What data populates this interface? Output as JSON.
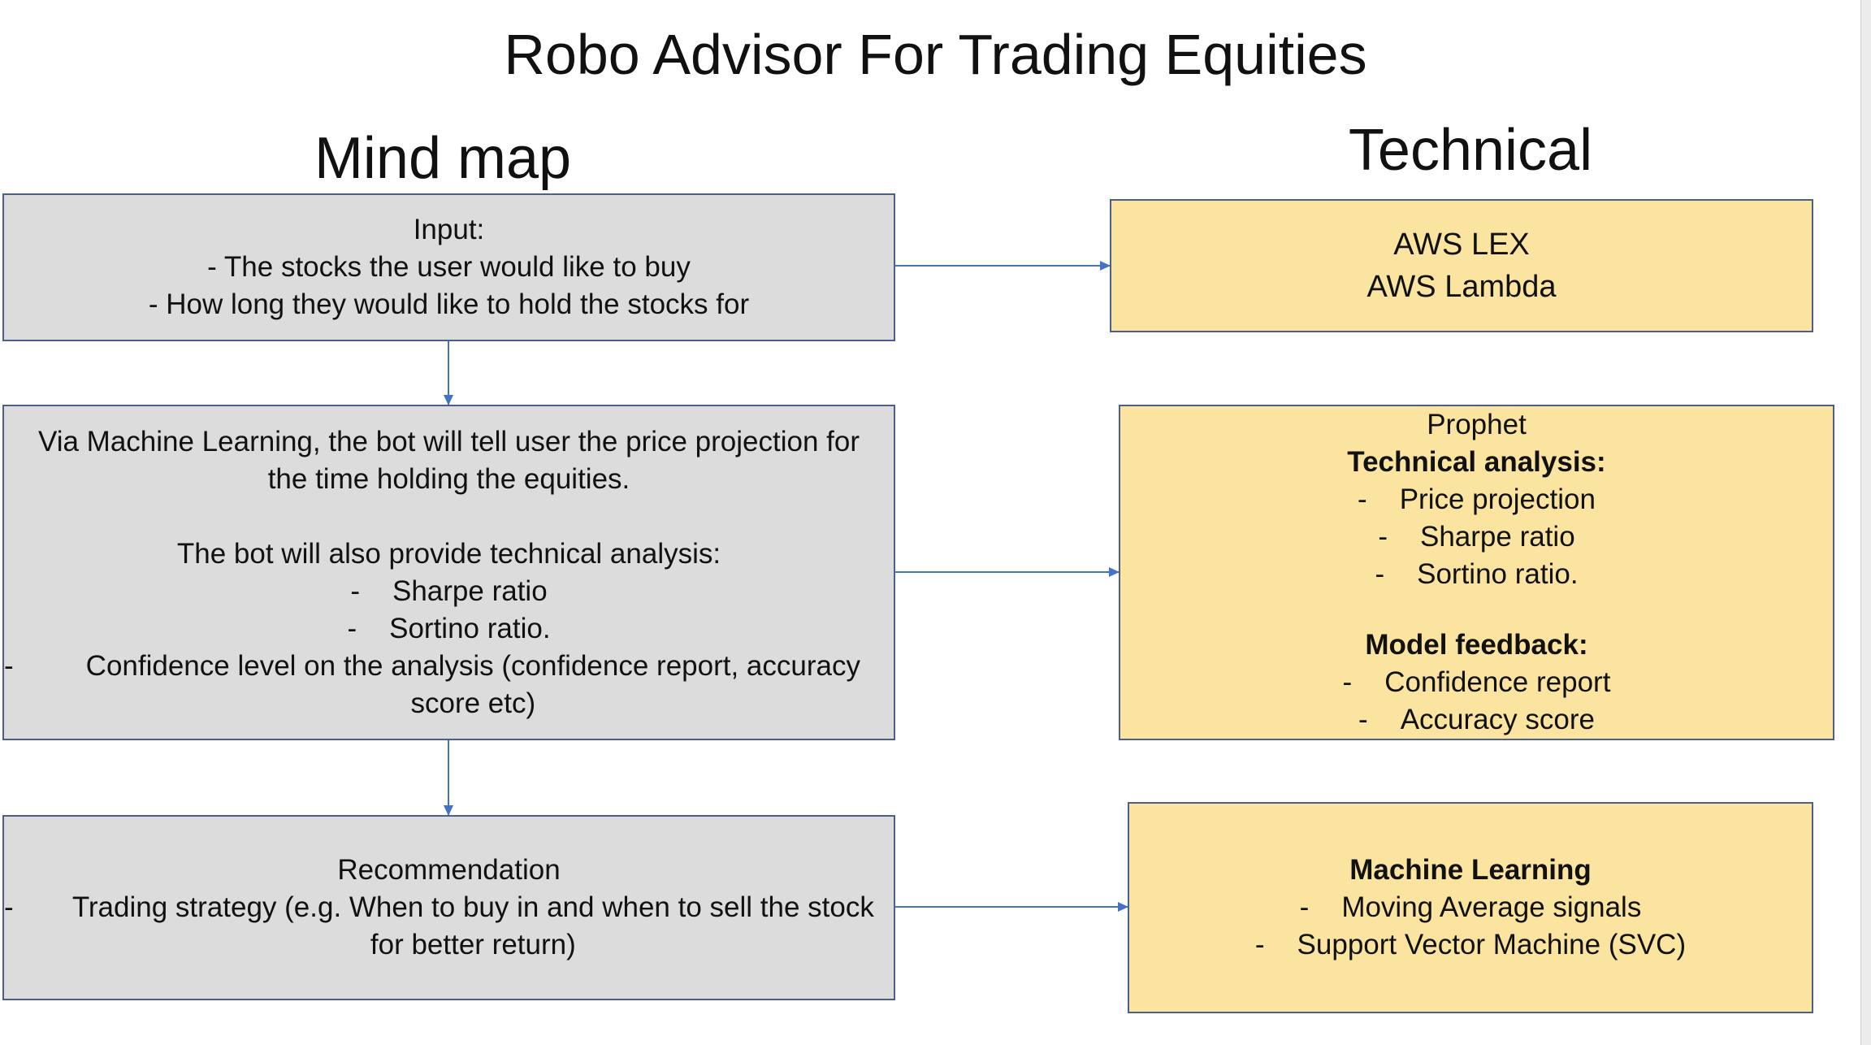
{
  "title": "Robo Advisor For Trading Equities",
  "headings": {
    "left": "Mind map",
    "right": "Technical"
  },
  "input_box": {
    "title": "Input:",
    "lines": [
      "- The stocks the user would like to buy",
      "- How long they would like to hold the stocks for"
    ]
  },
  "ml_box": {
    "intro_1": "Via Machine Learning, the bot will tell user the price projection for",
    "intro_2": "the time holding the equities.",
    "analysis_title": "The bot will also provide technical analysis:",
    "bullets": [
      "Sharpe ratio",
      "Sortino ratio."
    ],
    "confidence": "Confidence level on the analysis (confidence report, accuracy score etc)"
  },
  "recommendation_box": {
    "title": "Recommendation",
    "item": "Trading strategy (e.g. When to buy in and when to sell the stock for better return)"
  },
  "aws_box": {
    "lines": [
      "AWS LEX",
      "AWS Lambda"
    ]
  },
  "prophet_box": {
    "title": "Prophet",
    "analysis_heading": "Technical analysis:",
    "analysis_items": [
      "Price projection",
      "Sharpe ratio",
      "Sortino ratio."
    ],
    "feedback_heading": "Model feedback:",
    "feedback_items": [
      "Confidence report",
      "Accuracy score"
    ]
  },
  "ml_tech_box": {
    "heading": "Machine Learning",
    "items": [
      "Moving Average signals",
      "Support Vector Machine (SVC)"
    ]
  },
  "dash": "-",
  "colors": {
    "grey_box": "#dcdcdc",
    "yellow_box": "#fae49f",
    "border": "#4a5f8c",
    "arrow": "#4472c4"
  }
}
